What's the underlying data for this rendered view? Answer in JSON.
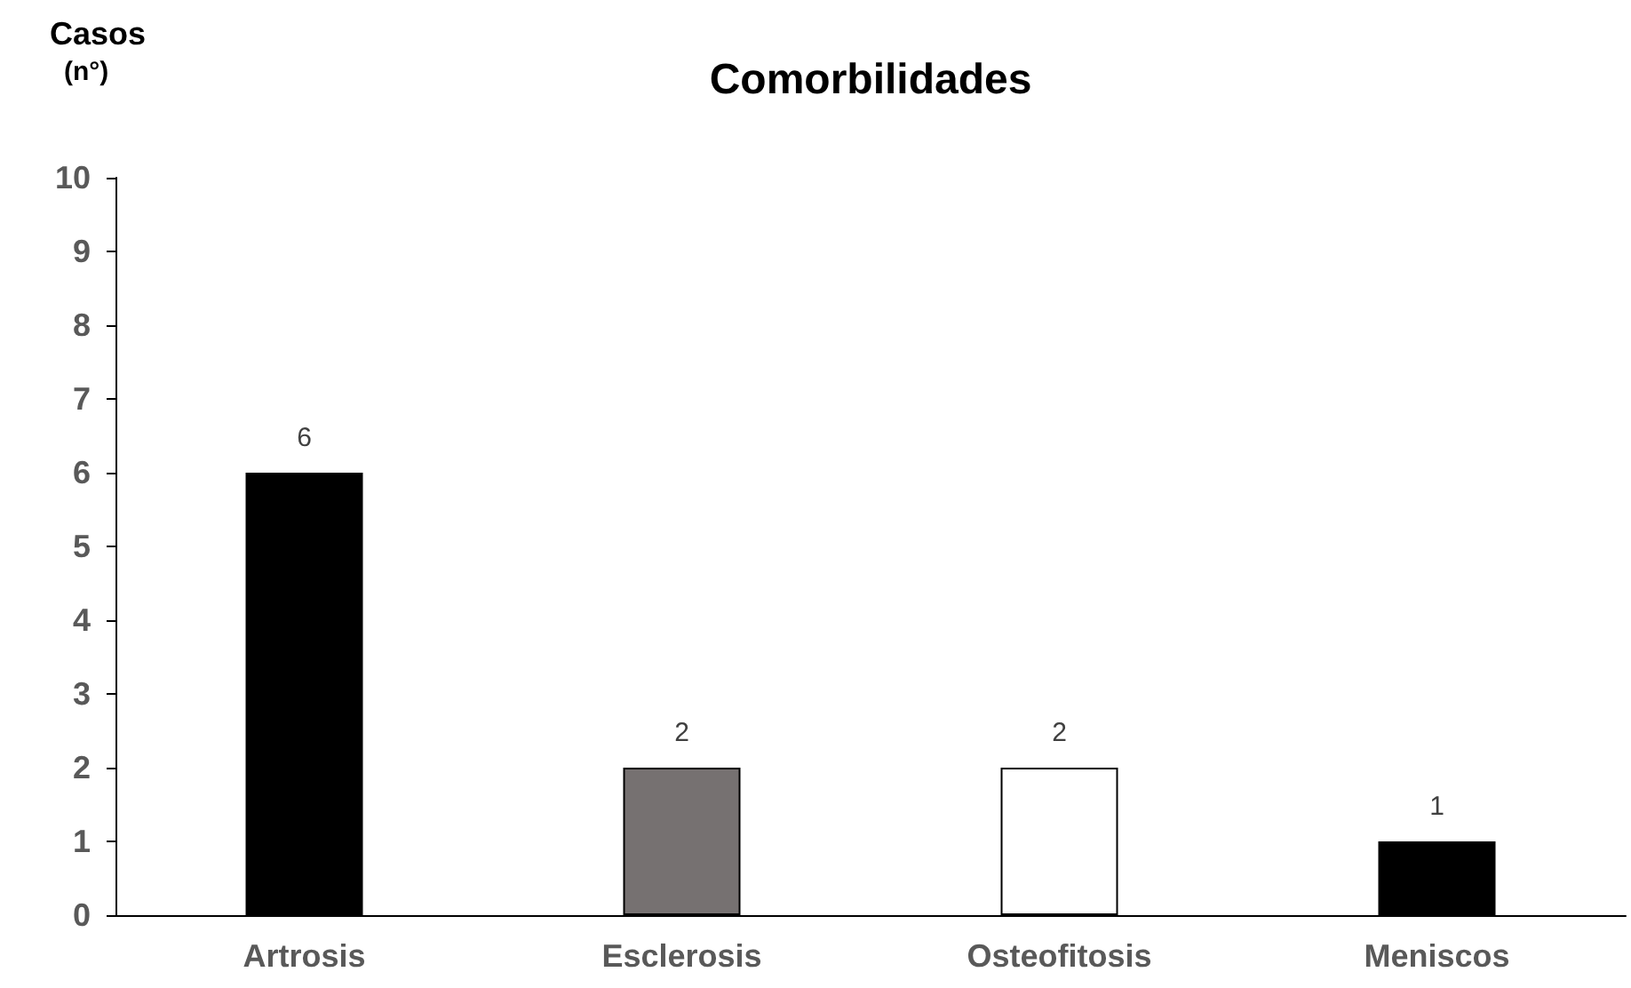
{
  "chart_data": {
    "type": "bar",
    "title": "Comorbilidades",
    "ylabel": "Casos\n(n°)",
    "categories": [
      "Artrosis",
      "Esclerosis",
      "Osteofitosis",
      "Meniscos"
    ],
    "values": [
      6,
      2,
      2,
      1
    ],
    "colors": [
      "#000000",
      "#767171",
      "#ffffff",
      "#000000"
    ],
    "ylim": [
      0,
      10
    ],
    "yticks": [
      0,
      1,
      2,
      3,
      4,
      5,
      6,
      7,
      8,
      9,
      10
    ],
    "grid": false,
    "data_labels": true
  }
}
